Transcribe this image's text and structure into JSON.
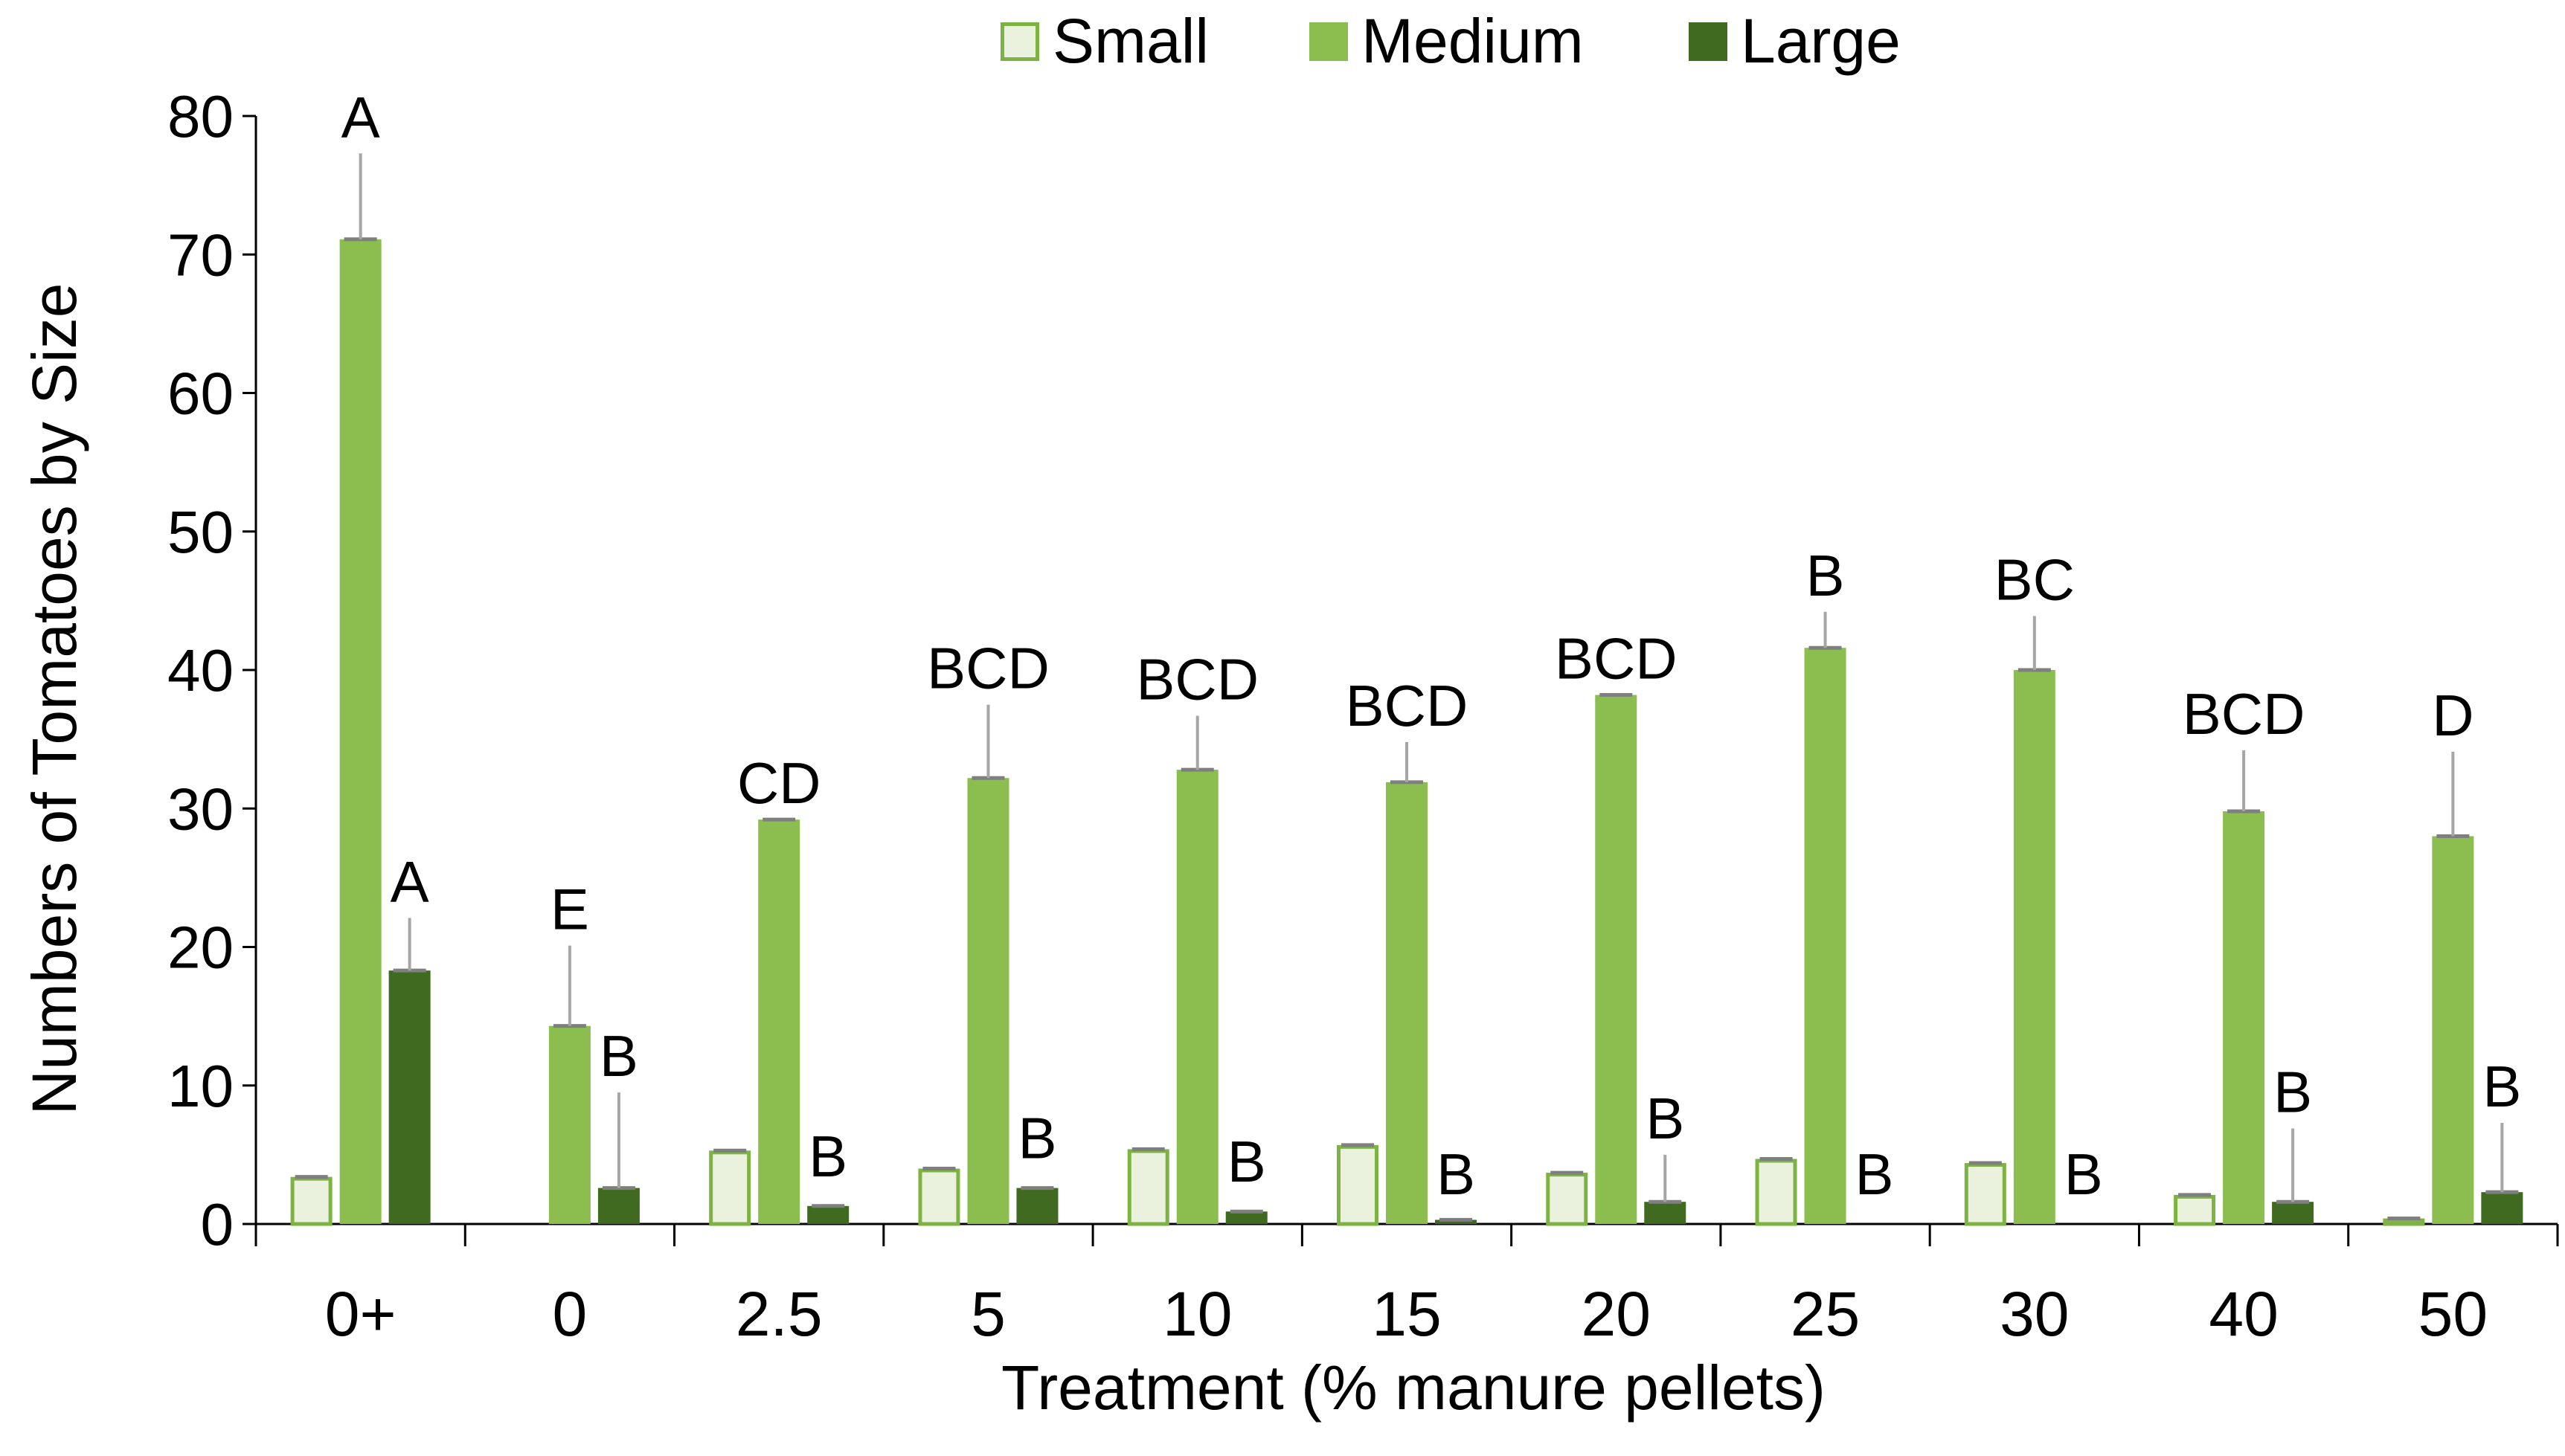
{
  "chart_data": {
    "type": "bar",
    "title": "",
    "xlabel": "Treatment (% manure pellets)",
    "ylabel": "Numbers of Tomatoes by Size",
    "ylim": [
      0,
      80
    ],
    "yticks": [
      0,
      10,
      20,
      30,
      40,
      50,
      60,
      70,
      80
    ],
    "legend_position": "top-center",
    "categories": [
      "0+",
      "0",
      "2.5",
      "5",
      "10",
      "15",
      "20",
      "25",
      "30",
      "40",
      "50"
    ],
    "series": [
      {
        "name": "Small",
        "color": "#eaf1dd",
        "edge_color": "#7cb342",
        "values": [
          3.4,
          0,
          5.3,
          4.0,
          5.4,
          5.7,
          3.7,
          4.7,
          4.4,
          2.1,
          0.4
        ],
        "error": [
          0,
          0,
          0,
          0,
          0,
          0,
          0,
          0,
          0,
          0,
          0
        ],
        "significance": [
          "",
          "",
          "",
          "",
          "",
          "",
          "",
          "",
          "",
          "",
          ""
        ]
      },
      {
        "name": "Medium",
        "color": "#8bbd4f",
        "edge_color": "#8bbd4f",
        "values": [
          71.1,
          14.3,
          29.2,
          32.2,
          32.8,
          31.9,
          38.2,
          41.6,
          40.0,
          29.8,
          28.0
        ],
        "error": [
          6.2,
          5.8,
          0,
          5.3,
          3.9,
          2.9,
          0,
          2.6,
          3.9,
          4.4,
          6.1
        ],
        "significance": [
          "A",
          "E",
          "CD",
          "BCD",
          "BCD",
          "BCD",
          "BCD",
          "B",
          "BC",
          "BCD",
          "D"
        ]
      },
      {
        "name": "Large",
        "color": "#3f6a1f",
        "edge_color": "#3f6a1f",
        "values": [
          18.3,
          2.6,
          1.3,
          2.6,
          0.9,
          0.3,
          1.6,
          0,
          0,
          1.6,
          2.3
        ],
        "error": [
          3.8,
          6.9,
          0,
          0,
          0,
          0,
          3.4,
          0,
          0,
          5.3,
          5.0
        ],
        "significance": [
          "A",
          "B",
          "B",
          "B",
          "B",
          "B",
          "B",
          "B",
          "B",
          "B",
          "B"
        ]
      }
    ]
  }
}
